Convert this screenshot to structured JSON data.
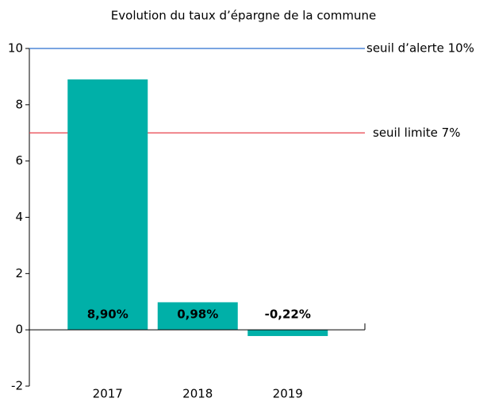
{
  "chart_data": {
    "type": "bar",
    "title": "Evolution du taux d’épargne de la commune",
    "categories": [
      "2017",
      "2018",
      "2019"
    ],
    "values": [
      8.9,
      0.98,
      -0.22
    ],
    "value_labels": [
      "8,90%",
      "0,98%",
      "-0,22%"
    ],
    "color": "#00b0a8",
    "ylim": [
      -2,
      10
    ],
    "yticks": [
      -2,
      0,
      2,
      4,
      6,
      8,
      10
    ],
    "reference_lines": [
      {
        "value": 10,
        "label": "seuil d’alerte 10%",
        "color": "#2a6fcf"
      },
      {
        "value": 7,
        "label": "seuil limite 7%",
        "color": "#e8404a"
      }
    ]
  }
}
